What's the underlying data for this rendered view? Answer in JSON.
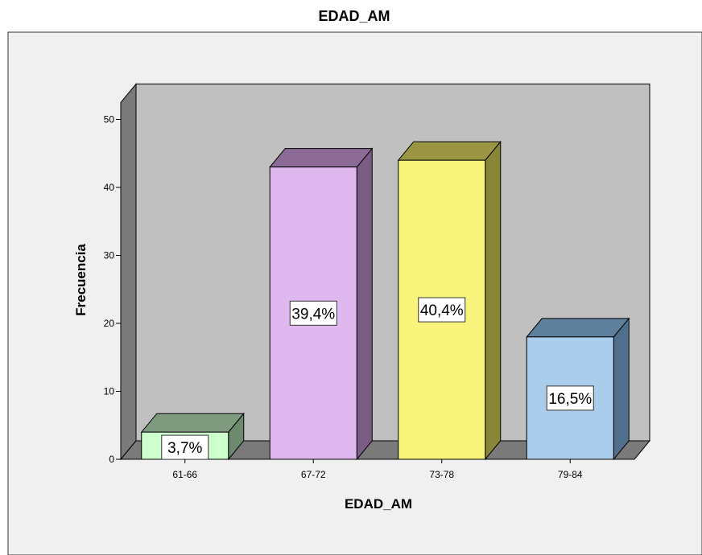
{
  "chart_data": {
    "type": "bar",
    "title": "EDAD_AM",
    "xlabel": "EDAD_AM",
    "ylabel": "Frecuencia",
    "ylim": [
      0,
      50
    ],
    "yticks": [
      0,
      10,
      20,
      30,
      40,
      50
    ],
    "categories": [
      "61-66",
      "67-72",
      "73-78",
      "79-84"
    ],
    "values": [
      4,
      43,
      44,
      18
    ],
    "data_labels": [
      "3,7%",
      "39,4%",
      "40,4%",
      "16,5%"
    ],
    "grid": false,
    "three_d": true,
    "colors": {
      "bar_fronts": [
        "#ccffcc",
        "#e0b8f0",
        "#f9f57c",
        "#aacdeb"
      ],
      "bar_tops": [
        "#7f9a7f",
        "#8c6c96",
        "#9a9644",
        "#5e7f9c"
      ],
      "bar_sides": [
        "#6e8a6e",
        "#7a5c84",
        "#8a8638",
        "#4f6f8c"
      ],
      "back_wall": "#c0c0c0",
      "left_wall": "#7a7a7a",
      "floor": "#7a7a7a",
      "plot_area": "#f0f0f0",
      "outline": "#000000"
    }
  }
}
